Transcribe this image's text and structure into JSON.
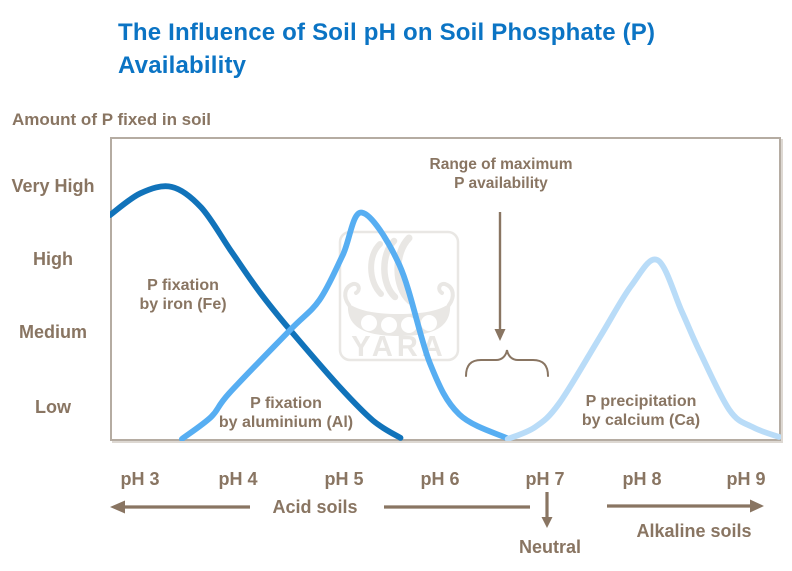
{
  "title": "The Influence of Soil pH on Soil Phosphate (P) Availability",
  "colors": {
    "title_blue": "#0b74c4",
    "brown": "#897562",
    "plot_border": "#b5aca2",
    "watermark": "#e9e7e4",
    "fe_curve": "#1173ba",
    "al_curve": "#57aef2",
    "ca_curve": "#b9dcf8"
  },
  "watermark": {
    "text": "YARA"
  },
  "chart_data": {
    "type": "line",
    "title": "The Influence of Soil pH on Soil Phosphate (P) Availability",
    "ylabel": "Amount of P fixed in soil",
    "xlabel": "",
    "grid": false,
    "legend_position": "labels-on-chart",
    "x_axis": {
      "unit": "pH",
      "tick_labels": [
        "pH 3",
        "pH 4",
        "pH 5",
        "pH 6",
        "pH 7",
        "pH 8",
        "pH 9"
      ],
      "tick_values": [
        3,
        4,
        5,
        6,
        7,
        8,
        9
      ],
      "range": [
        2.7,
        9.33
      ]
    },
    "y_axis": {
      "tick_labels": [
        "Very High",
        "High",
        "Medium",
        "Low"
      ],
      "scale": "qualitative, 0 = none fixed to 1 = maximum fixed",
      "range": [
        0,
        1
      ]
    },
    "series": [
      {
        "name": "P fixation by iron (Fe)",
        "label_lines": [
          "P fixation",
          "by iron (Fe)"
        ],
        "color": "#1173ba",
        "points": [
          [
            2.7,
            0.875
          ],
          [
            3.0,
            0.96
          ],
          [
            3.31,
            0.985
          ],
          [
            3.6,
            0.905
          ],
          [
            3.89,
            0.739
          ],
          [
            4.18,
            0.575
          ],
          [
            4.48,
            0.428
          ],
          [
            4.97,
            0.206
          ],
          [
            5.3,
            0.075
          ],
          [
            5.57,
            0.008
          ]
        ]
      },
      {
        "name": "P fixation by aluminium (Al)",
        "label_lines": [
          "P fixation",
          "by aluminium (Al)"
        ],
        "color": "#57aef2",
        "points": [
          [
            3.41,
            0.004
          ],
          [
            3.7,
            0.09
          ],
          [
            3.88,
            0.183
          ],
          [
            4.48,
            0.428
          ],
          [
            4.77,
            0.545
          ],
          [
            5.0,
            0.72
          ],
          [
            5.19,
            0.885
          ],
          [
            5.56,
            0.68
          ],
          [
            5.86,
            0.3
          ],
          [
            6.15,
            0.1
          ],
          [
            6.63,
            0.006
          ]
        ]
      },
      {
        "name": "P precipitation by calcium (Ca)",
        "label_lines": [
          "P precipitation",
          "by calcium (Ca)"
        ],
        "color": "#b9dcf8",
        "points": [
          [
            6.63,
            0.004
          ],
          [
            6.9,
            0.05
          ],
          [
            7.14,
            0.144
          ],
          [
            7.54,
            0.4
          ],
          [
            7.85,
            0.6
          ],
          [
            8.11,
            0.7
          ],
          [
            8.35,
            0.5
          ],
          [
            8.52,
            0.35
          ],
          [
            8.82,
            0.117
          ],
          [
            9.05,
            0.05
          ],
          [
            9.31,
            0.012
          ]
        ]
      }
    ],
    "annotations": {
      "max_availability": {
        "line1": "Range of maximum",
        "line2": "P availability",
        "target_pH_range": [
          6.5,
          7.3
        ]
      }
    },
    "zones": {
      "acid": {
        "label": "Acid soils",
        "pH_range": [
          3,
          7
        ]
      },
      "neutral": {
        "label": "Neutral",
        "pH": 7
      },
      "alkaline": {
        "label": "Alkaline soils",
        "pH_range": [
          7,
          9
        ]
      }
    }
  }
}
